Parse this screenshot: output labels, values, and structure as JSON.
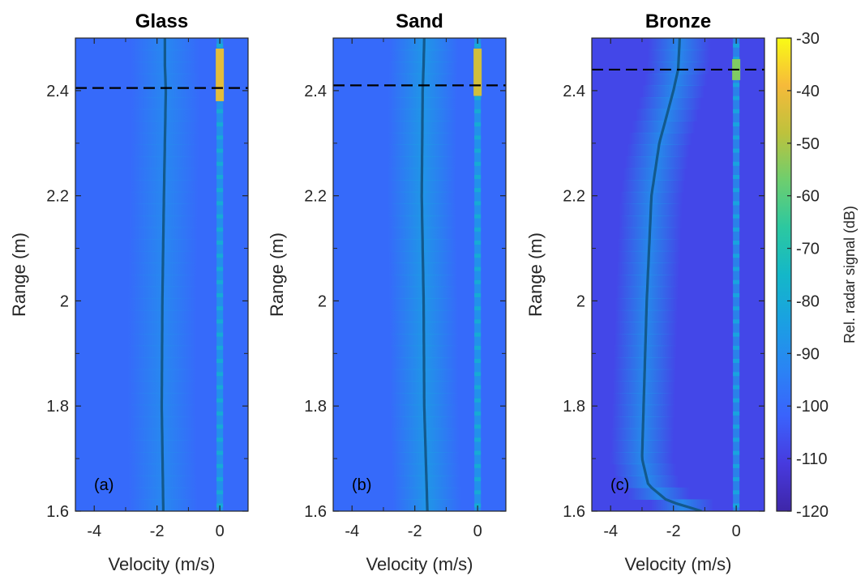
{
  "chart_data": [
    {
      "type": "heatmap",
      "title": "Glass",
      "panel_label": "(a)",
      "xlabel": "Velocity (m/s)",
      "ylabel": "Range (m)",
      "xlim": [
        -4.6,
        0.9
      ],
      "ylim": [
        1.6,
        2.5
      ],
      "xticks": [
        -4,
        -2,
        0
      ],
      "yticks": [
        1.6,
        1.8,
        2,
        2.2,
        2.4
      ],
      "ytick_labels": [
        "1.6",
        "1.8",
        "2",
        "2.2",
        "2.4"
      ],
      "background_level_db": -100,
      "band": {
        "center_velocity_top": -1.75,
        "center_velocity_bottom": -2.0,
        "level_db": -90
      },
      "mean_velocity_line": {
        "range": [
          1.6,
          1.8,
          2.0,
          2.2,
          2.4,
          2.45,
          2.5
        ],
        "velocity": [
          -1.8,
          -1.85,
          -1.83,
          -1.78,
          -1.72,
          -1.75,
          -1.75
        ]
      },
      "zero_velocity_line": {
        "velocity": 0,
        "level_db": -85,
        "hotspot_range": [
          2.38,
          2.48
        ],
        "hotspot_level_db": -42
      },
      "surface_range": 2.405
    },
    {
      "type": "heatmap",
      "title": "Sand",
      "panel_label": "(b)",
      "xlabel": "Velocity (m/s)",
      "ylabel": "Range (m)",
      "xlim": [
        -4.6,
        0.9
      ],
      "ylim": [
        1.6,
        2.5
      ],
      "xticks": [
        -4,
        -2,
        0
      ],
      "yticks": [
        1.6,
        1.8,
        2,
        2.2,
        2.4
      ],
      "ytick_labels": [
        "1.6",
        "1.8",
        "2",
        "2.2",
        "2.4"
      ],
      "background_level_db": -100,
      "band": {
        "center_velocity_top": -1.7,
        "center_velocity_bottom": -1.65,
        "level_db": -85
      },
      "mean_velocity_line": {
        "range": [
          1.6,
          1.8,
          2.0,
          2.2,
          2.4,
          2.45,
          2.5
        ],
        "velocity": [
          -1.6,
          -1.7,
          -1.72,
          -1.78,
          -1.75,
          -1.72,
          -1.7
        ]
      },
      "zero_velocity_line": {
        "velocity": 0,
        "level_db": -85,
        "hotspot_range": [
          2.39,
          2.48
        ],
        "hotspot_level_db": -45
      },
      "surface_range": 2.41
    },
    {
      "type": "heatmap",
      "title": "Bronze",
      "panel_label": "(c)",
      "xlabel": "Velocity (m/s)",
      "ylabel": "Range (m)",
      "xlim": [
        -4.6,
        0.9
      ],
      "ylim": [
        1.6,
        2.5
      ],
      "xticks": [
        -4,
        -2,
        0
      ],
      "yticks": [
        1.6,
        1.8,
        2,
        2.2,
        2.4
      ],
      "ytick_labels": [
        "1.6",
        "1.8",
        "2",
        "2.2",
        "2.4"
      ],
      "background_level_db": -108,
      "band": {
        "center_velocity_top": -1.9,
        "center_velocity_bottom": -3.0,
        "level_db": -88
      },
      "mean_velocity_line": {
        "range": [
          1.6,
          1.62,
          1.65,
          1.7,
          1.8,
          2.0,
          2.2,
          2.3,
          2.4,
          2.44,
          2.5
        ],
        "velocity": [
          -1.1,
          -2.2,
          -2.8,
          -3.0,
          -2.95,
          -2.85,
          -2.7,
          -2.45,
          -2.0,
          -1.85,
          -1.8
        ]
      },
      "zero_velocity_line": {
        "velocity": 0,
        "level_db": -88,
        "hotspot_range": [
          2.42,
          2.46
        ],
        "hotspot_level_db": -55
      },
      "surface_range": 2.44
    }
  ],
  "colorbar": {
    "label": "Rel. radar signal (dB)",
    "min": -120,
    "max": -30,
    "ticks": [
      -30,
      -40,
      -50,
      -60,
      -70,
      -80,
      -90,
      -100,
      -110,
      -120
    ],
    "colormap": "parula"
  }
}
